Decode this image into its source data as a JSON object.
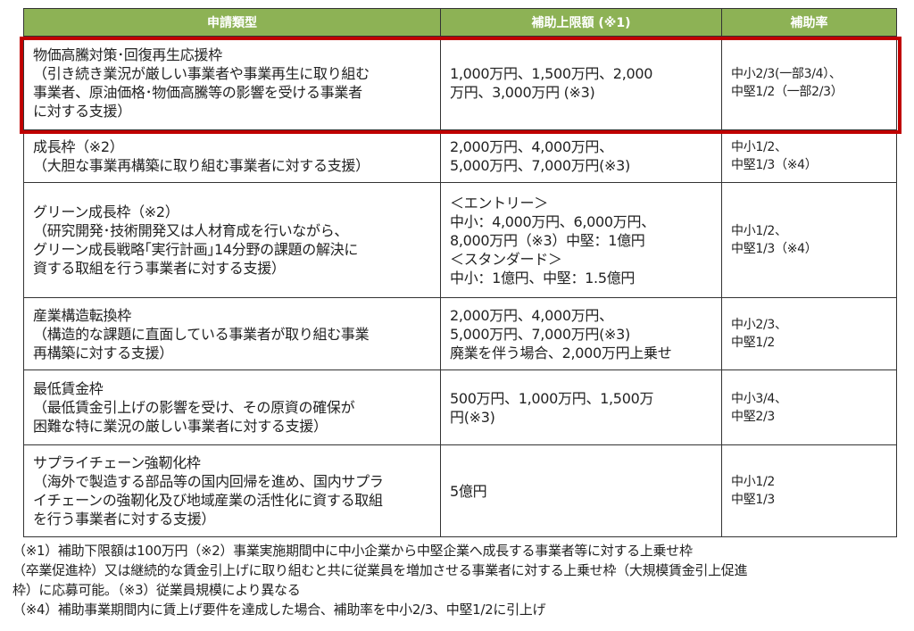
{
  "headers": [
    "申請類型",
    "補助上限額 (※1)",
    "補助率"
  ],
  "rows": [
    {
      "type": "物価高騰対策･回復再生応援枠\n（引き続き業況が厳しい事業者や事業再生に取り組む\n事業者、原油価格･物価高騰等の影響を受ける事業者\nに対する支援）",
      "limit": "1,000万円、1,500万円、2,000\n万円、3,000万円 (※3)",
      "rate": "中小2/3(一部3/4）、\n中堅1/2（一部2/3）",
      "highlighted": true
    },
    {
      "type": "成長枠（※2）\n（大胆な事業再構築に取り組む事業者に対する支援）",
      "limit": "2,000万円、4,000万円、\n5,000万円、7,000万円(※3)",
      "rate": "中小1/2、\n中堅1/3（※4）"
    },
    {
      "type": "グリーン成長枠（※2）\n（研究開発･技術開発又は人材育成を行いながら、\nグリーン成長戦略｢実行計画｣14分野の課題の解決に\n資する取組を行う事業者に対する支援）",
      "limit": "＜エントリー＞\n中小：4,000万円、6,000万円、\n8,000万円（※3）中堅：1億円\n＜スタンダード＞\n中小：1億円、中堅：1.5億円",
      "rate": "中小1/2、\n中堅1/3（※4）"
    },
    {
      "type": "産業構造転換枠\n（構造的な課題に直面している事業者が取り組む事業\n再構築に対する支援）",
      "limit": "2,000万円、4,000万円、\n5,000万円、7,000万円(※3)\n廃業を伴う場合、2,000万円上乗せ",
      "rate": "中小2/3、\n中堅1/2"
    },
    {
      "type": "最低賃金枠\n（最低賃金引上げの影響を受け、その原資の確保が\n困難な特に業況の厳しい事業者に対する支援）",
      "limit": "500万円、1,000万円、1,500万\n円(※3)",
      "rate": "中小3/4、\n中堅2/3"
    },
    {
      "type": "サプライチェーン強靭化枠\n（海外で製造する部品等の国内回帰を進め、国内サプラ\nイチェーンの強靭化及び地域産業の活性化に資する取組\nを行う事業者に対する支援）",
      "limit": "5億円",
      "rate": "中小1/2\n中堅1/3"
    }
  ],
  "notes": [
    "（※1）補助下限額は100万円（※2）事業実施期間中に中小企業から中堅企業へ成長する事業者等に対する上乗せ枠",
    "（卒業促進枠）又は継続的な賃金引上げに取り組むと共に従業員を増加させる事業者に対する上乗せ枠（大規模賃金引上促進",
    "枠）に応募可能。（※3）従業員規模により異なる",
    "（※4）補助事業期間内に賃上げ要件を達成した場合、補助率を中小2/3、中堅1/2に引上げ"
  ],
  "colors": {
    "header_bg": "#8db255",
    "highlight_border": "#c00000"
  }
}
